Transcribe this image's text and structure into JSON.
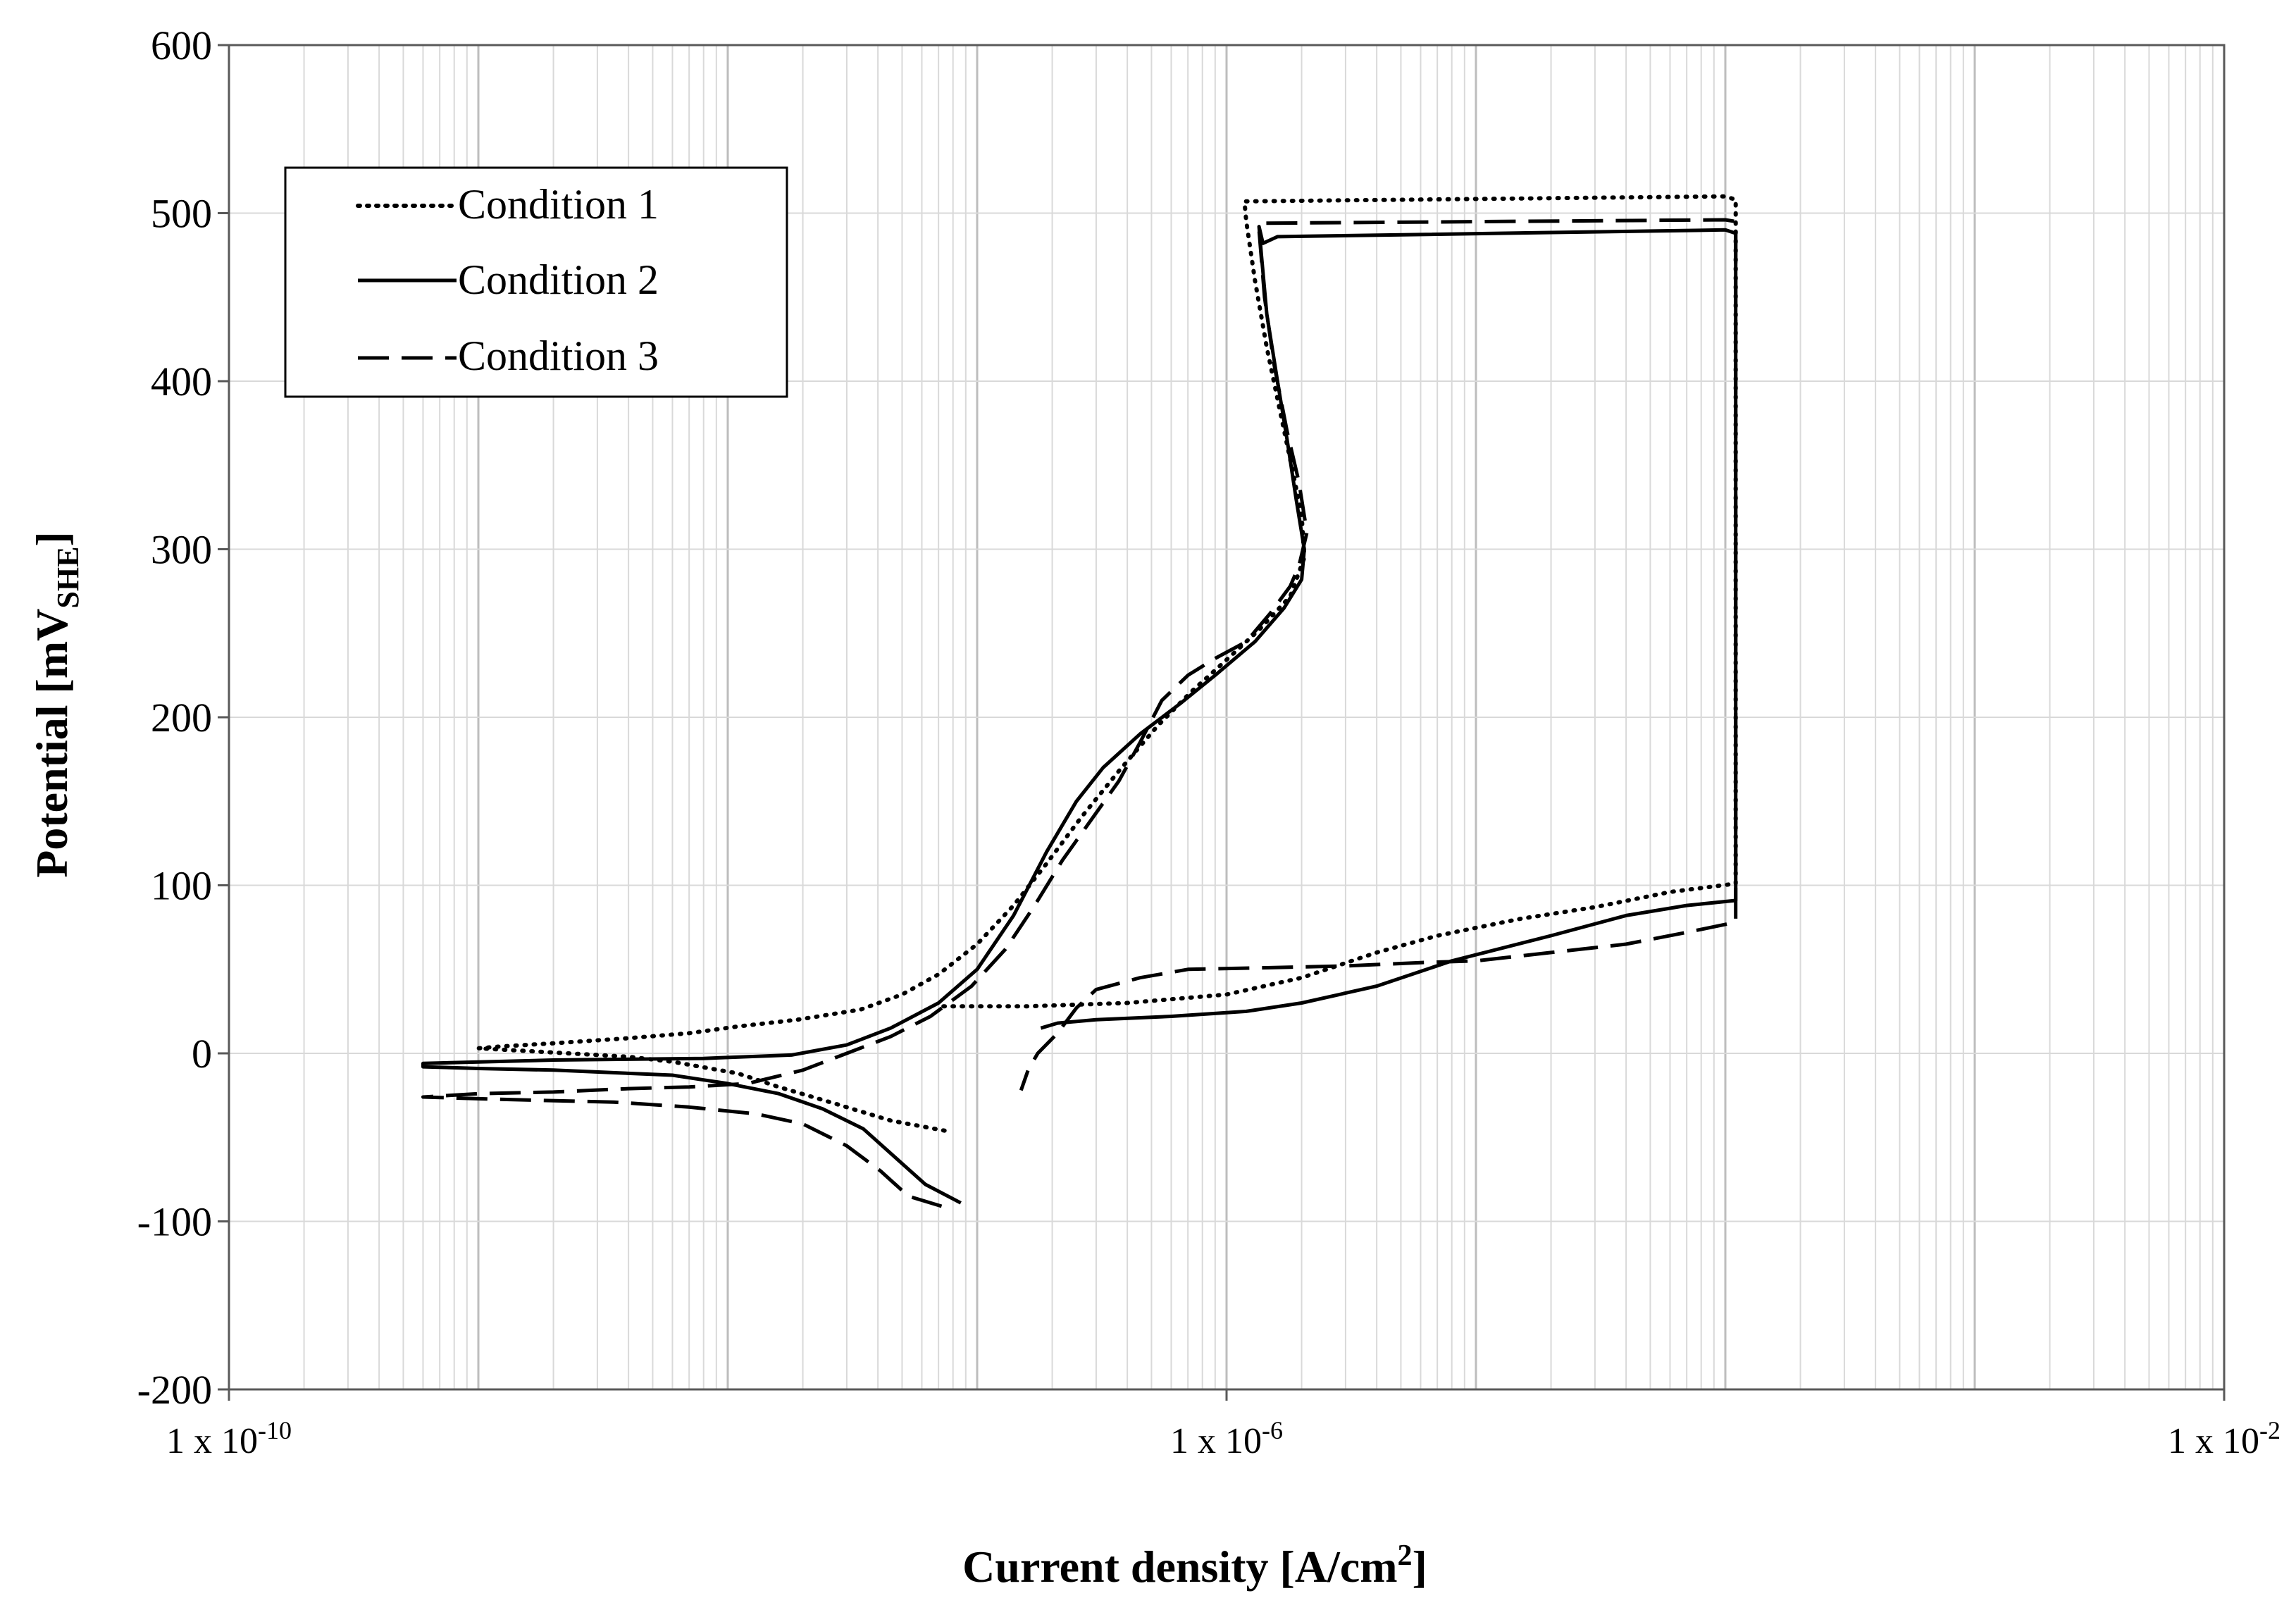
{
  "chart_data": {
    "type": "line",
    "title": "",
    "xlabel": "Current density [A/cm",
    "xlabel_sup": "2",
    "xlabel_end": "]",
    "ylabel": "Potential [mV",
    "ylabel_sub": "SHE",
    "ylabel_end": "]",
    "x_scale": "log",
    "xlim": [
      1e-10,
      0.01
    ],
    "ylim": [
      -200,
      600
    ],
    "x_tick_labels": [
      {
        "value": 1e-10,
        "base": "1 x 10",
        "exp": "-10"
      },
      {
        "value": 1e-06,
        "base": "1 x 10",
        "exp": "-6"
      },
      {
        "value": 0.01,
        "base": "1 x 10",
        "exp": "-2"
      }
    ],
    "y_ticks": [
      -200,
      -100,
      0,
      100,
      200,
      300,
      400,
      500,
      600
    ],
    "grid": true,
    "legend_position": "top-left",
    "series": [
      {
        "name": "Condition 1",
        "style": "dotted",
        "points": [
          [
            7.4e-08,
            -46
          ],
          [
            4.5e-08,
            -40
          ],
          [
            2.7e-08,
            -30
          ],
          [
            1.6e-08,
            -20
          ],
          [
            1.1e-08,
            -12
          ],
          [
            6e-09,
            -5
          ],
          [
            4e-09,
            -2
          ],
          [
            1e-09,
            3
          ],
          [
            1.2e-09,
            4
          ],
          [
            2e-09,
            6
          ],
          [
            4e-09,
            9
          ],
          [
            7e-09,
            12
          ],
          [
            1.1e-08,
            16
          ],
          [
            1.9e-08,
            20
          ],
          [
            3.4e-08,
            26
          ],
          [
            5e-08,
            35
          ],
          [
            7e-08,
            47
          ],
          [
            1e-07,
            65
          ],
          [
            1.4e-07,
            88
          ],
          [
            1.9e-07,
            113
          ],
          [
            2.6e-07,
            140
          ],
          [
            3.7e-07,
            168
          ],
          [
            5.3e-07,
            195
          ],
          [
            7.2e-07,
            215
          ],
          [
            9.8e-07,
            233
          ],
          [
            1.35e-06,
            252
          ],
          [
            1.8e-06,
            272
          ],
          [
            2.05e-06,
            295
          ],
          [
            2e-06,
            320
          ],
          [
            1.85e-06,
            345
          ],
          [
            1.65e-06,
            380
          ],
          [
            1.45e-06,
            420
          ],
          [
            1.3e-06,
            460
          ],
          [
            1.2e-06,
            495
          ],
          [
            1.18e-06,
            507
          ],
          [
            0.0001,
            510
          ],
          [
            0.00011,
            508
          ],
          [
            0.00011,
            101
          ],
          [
            6e-05,
            96
          ],
          [
            3e-05,
            87
          ],
          [
            1.5e-05,
            80
          ],
          [
            7e-06,
            70
          ],
          [
            4e-06,
            60
          ],
          [
            2e-06,
            45
          ],
          [
            1e-06,
            35
          ],
          [
            4e-07,
            30
          ],
          [
            1.6e-07,
            28
          ],
          [
            7e-08,
            28
          ]
        ]
      },
      {
        "name": "Condition 2",
        "style": "solid",
        "points": [
          [
            8.6e-08,
            -89
          ],
          [
            6.2e-08,
            -78
          ],
          [
            4.7e-08,
            -62
          ],
          [
            3.5e-08,
            -45
          ],
          [
            2.4e-08,
            -33
          ],
          [
            1.6e-08,
            -24
          ],
          [
            1e-08,
            -18
          ],
          [
            6e-09,
            -13
          ],
          [
            2e-09,
            -10
          ],
          [
            1e-09,
            -9
          ],
          [
            6e-10,
            -8
          ],
          [
            6e-10,
            -6
          ],
          [
            2e-09,
            -4
          ],
          [
            8e-09,
            -3
          ],
          [
            1.8e-08,
            -1
          ],
          [
            3e-08,
            5
          ],
          [
            4.5e-08,
            15
          ],
          [
            7e-08,
            30
          ],
          [
            1e-07,
            50
          ],
          [
            1.4e-07,
            82
          ],
          [
            1.9e-07,
            120
          ],
          [
            2.5e-07,
            150
          ],
          [
            3.2e-07,
            170
          ],
          [
            4.5e-07,
            190
          ],
          [
            6.5e-07,
            208
          ],
          [
            9e-07,
            225
          ],
          [
            1.3e-06,
            245
          ],
          [
            1.7e-06,
            265
          ],
          [
            2e-06,
            282
          ],
          [
            2.05e-06,
            300
          ],
          [
            1.9e-06,
            330
          ],
          [
            1.75e-06,
            365
          ],
          [
            1.6e-06,
            400
          ],
          [
            1.45e-06,
            440
          ],
          [
            1.38e-06,
            475
          ],
          [
            1.35e-06,
            492
          ],
          [
            1.4e-06,
            482
          ],
          [
            1.6e-06,
            486
          ],
          [
            0.0001,
            490
          ],
          [
            0.00011,
            488
          ],
          [
            0.00011,
            91
          ],
          [
            7e-05,
            88
          ],
          [
            4e-05,
            82
          ],
          [
            2e-05,
            70
          ],
          [
            8e-06,
            55
          ],
          [
            4e-06,
            40
          ],
          [
            2e-06,
            30
          ],
          [
            1.2e-06,
            25
          ],
          [
            6e-07,
            22
          ],
          [
            3e-07,
            20
          ],
          [
            2.1e-07,
            18
          ],
          [
            1.8e-07,
            15
          ]
        ]
      },
      {
        "name": "Condition 3",
        "style": "dashed",
        "points": [
          [
            7.2e-08,
            -91
          ],
          [
            5.3e-08,
            -85
          ],
          [
            4.1e-08,
            -70
          ],
          [
            3e-08,
            -55
          ],
          [
            2e-08,
            -42
          ],
          [
            1.3e-08,
            -36
          ],
          [
            7e-09,
            -32
          ],
          [
            3.5e-09,
            -29
          ],
          [
            1.8e-09,
            -28
          ],
          [
            1e-09,
            -27
          ],
          [
            6e-10,
            -26
          ],
          [
            1e-09,
            -24
          ],
          [
            2e-09,
            -23
          ],
          [
            4e-09,
            -21
          ],
          [
            7e-09,
            -20
          ],
          [
            1.2e-08,
            -18
          ],
          [
            2e-08,
            -10
          ],
          [
            3e-08,
            0
          ],
          [
            4.5e-08,
            10
          ],
          [
            6.5e-08,
            22
          ],
          [
            9.5e-08,
            40
          ],
          [
            1.3e-07,
            62
          ],
          [
            1.7e-07,
            88
          ],
          [
            2.2e-07,
            115
          ],
          [
            2.9e-07,
            140
          ],
          [
            3.7e-07,
            162
          ],
          [
            4.5e-07,
            185
          ],
          [
            5.5e-07,
            210
          ],
          [
            7e-07,
            225
          ],
          [
            9e-07,
            235
          ],
          [
            1.2e-06,
            245
          ],
          [
            1.5e-06,
            262
          ],
          [
            1.8e-06,
            278
          ],
          [
            1.95e-06,
            290
          ],
          [
            2.1e-06,
            310
          ],
          [
            1.95e-06,
            340
          ],
          [
            1.75e-06,
            370
          ],
          [
            1.55e-06,
            410
          ],
          [
            1.42e-06,
            450
          ],
          [
            1.35e-06,
            490
          ],
          [
            1.4e-06,
            494
          ],
          [
            0.0001,
            496
          ],
          [
            0.00011,
            495
          ],
          [
            0.00011,
            78
          ],
          [
            7e-05,
            72
          ],
          [
            4e-05,
            65
          ],
          [
            2e-05,
            60
          ],
          [
            1e-05,
            55
          ],
          [
            6e-06,
            54
          ],
          [
            3e-06,
            52
          ],
          [
            1.5e-06,
            51
          ],
          [
            7e-07,
            50
          ],
          [
            4.5e-07,
            45
          ],
          [
            3e-07,
            38
          ],
          [
            2.5e-07,
            27
          ],
          [
            2.1e-07,
            12
          ],
          [
            1.75e-07,
            0
          ],
          [
            1.6e-07,
            -10
          ],
          [
            1.5e-07,
            -22
          ]
        ]
      }
    ]
  }
}
